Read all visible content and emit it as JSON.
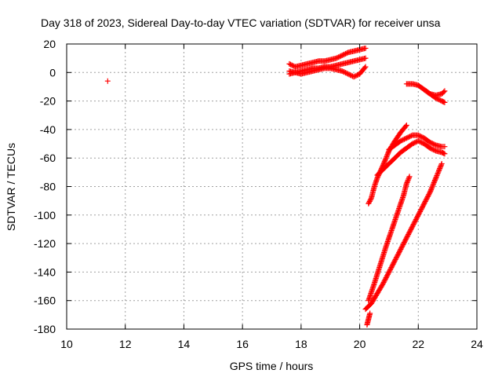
{
  "chart_data": {
    "type": "scatter",
    "title": "Day 318 of 2023, Sidereal Day-to-day VTEC variation (SDTVAR) for receiver unsa",
    "xlabel": "GPS time / hours",
    "ylabel": "SDTVAR / TECUs",
    "xlim": [
      10,
      24
    ],
    "ylim": [
      -180,
      20
    ],
    "x_ticks": [
      "10",
      "12",
      "14",
      "16",
      "18",
      "20",
      "22",
      "24"
    ],
    "y_ticks": [
      "20",
      "0",
      "-20",
      "-40",
      "-60",
      "-80",
      "-100",
      "-120",
      "-140",
      "-160",
      "-180"
    ],
    "grid": true,
    "marker": "plus",
    "color": "#ff0000",
    "series": [
      {
        "points": [
          [
            11.4,
            -6
          ]
        ]
      },
      {
        "points": [
          [
            17.6,
            6
          ],
          [
            17.8,
            4
          ],
          [
            18.0,
            5
          ],
          [
            18.2,
            6
          ],
          [
            18.4,
            7
          ],
          [
            18.6,
            8
          ],
          [
            18.8,
            8
          ],
          [
            19.0,
            9
          ],
          [
            19.2,
            10
          ],
          [
            19.4,
            12
          ],
          [
            19.6,
            14
          ],
          [
            19.8,
            15
          ],
          [
            20.0,
            16
          ],
          [
            20.2,
            17
          ]
        ]
      },
      {
        "points": [
          [
            17.6,
            -1
          ],
          [
            17.8,
            0
          ],
          [
            18.0,
            1
          ],
          [
            18.2,
            2
          ],
          [
            18.4,
            3
          ],
          [
            18.6,
            3
          ],
          [
            18.8,
            4
          ],
          [
            19.0,
            4
          ],
          [
            19.2,
            5
          ],
          [
            19.4,
            6
          ],
          [
            19.6,
            7
          ],
          [
            19.8,
            8
          ],
          [
            20.0,
            9
          ],
          [
            20.2,
            10
          ]
        ]
      },
      {
        "points": [
          [
            17.6,
            1
          ],
          [
            17.8,
            0
          ],
          [
            18.0,
            -1
          ],
          [
            18.2,
            0
          ],
          [
            18.4,
            1
          ],
          [
            18.6,
            2
          ],
          [
            18.8,
            3
          ],
          [
            19.0,
            3
          ],
          [
            19.2,
            2
          ],
          [
            19.4,
            1
          ],
          [
            19.6,
            -1
          ],
          [
            19.8,
            -3
          ],
          [
            20.0,
            -1
          ],
          [
            20.2,
            4
          ]
        ]
      },
      {
        "points": [
          [
            21.6,
            -8
          ],
          [
            21.8,
            -8
          ],
          [
            22.0,
            -9
          ],
          [
            22.2,
            -12
          ],
          [
            22.4,
            -15
          ],
          [
            22.6,
            -16
          ],
          [
            22.8,
            -15
          ],
          [
            22.9,
            -13
          ]
        ]
      },
      {
        "points": [
          [
            22.2,
            -12
          ],
          [
            22.4,
            -15
          ],
          [
            22.6,
            -18
          ],
          [
            22.8,
            -20
          ],
          [
            22.9,
            -21
          ]
        ]
      },
      {
        "points": [
          [
            20.3,
            -92
          ],
          [
            20.4,
            -88
          ],
          [
            20.5,
            -80
          ],
          [
            20.6,
            -74
          ],
          [
            20.8,
            -65
          ],
          [
            21.0,
            -55
          ],
          [
            21.2,
            -48
          ],
          [
            21.4,
            -42
          ],
          [
            21.6,
            -37
          ]
        ]
      },
      {
        "points": [
          [
            20.6,
            -72
          ],
          [
            20.8,
            -68
          ],
          [
            21.0,
            -64
          ],
          [
            21.2,
            -60
          ],
          [
            21.4,
            -56
          ],
          [
            21.6,
            -53
          ],
          [
            21.8,
            -50
          ],
          [
            22.0,
            -48
          ],
          [
            22.2,
            -50
          ],
          [
            22.4,
            -53
          ],
          [
            22.6,
            -55
          ],
          [
            22.8,
            -56
          ],
          [
            22.9,
            -57
          ]
        ]
      },
      {
        "points": [
          [
            21.0,
            -54
          ],
          [
            21.2,
            -51
          ],
          [
            21.4,
            -48
          ],
          [
            21.6,
            -46
          ],
          [
            21.8,
            -44
          ],
          [
            22.0,
            -44
          ],
          [
            22.2,
            -46
          ],
          [
            22.4,
            -49
          ],
          [
            22.6,
            -51
          ],
          [
            22.8,
            -52
          ],
          [
            22.9,
            -52
          ]
        ]
      },
      {
        "points": [
          [
            20.3,
            -160
          ],
          [
            20.5,
            -148
          ],
          [
            20.7,
            -135
          ],
          [
            20.9,
            -122
          ],
          [
            21.1,
            -110
          ],
          [
            21.3,
            -98
          ],
          [
            21.5,
            -86
          ],
          [
            21.6,
            -78
          ],
          [
            21.7,
            -73
          ]
        ]
      },
      {
        "points": [
          [
            20.2,
            -166
          ],
          [
            20.4,
            -162
          ],
          [
            20.6,
            -155
          ],
          [
            20.8,
            -148
          ],
          [
            21.0,
            -140
          ],
          [
            21.2,
            -132
          ],
          [
            21.4,
            -124
          ],
          [
            21.6,
            -116
          ],
          [
            21.8,
            -108
          ],
          [
            22.0,
            -100
          ],
          [
            22.2,
            -92
          ],
          [
            22.4,
            -84
          ],
          [
            22.6,
            -74
          ],
          [
            22.8,
            -64
          ]
        ]
      },
      {
        "points": [
          [
            20.25,
            -177
          ],
          [
            20.3,
            -173
          ],
          [
            20.35,
            -169
          ]
        ]
      }
    ]
  }
}
